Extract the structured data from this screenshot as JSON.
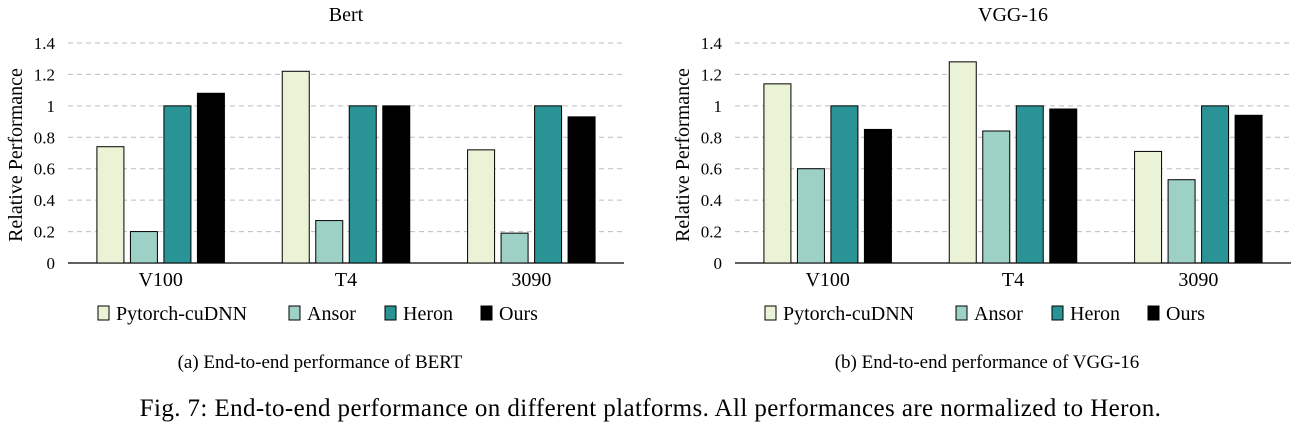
{
  "chart_data": [
    {
      "type": "bar",
      "title": "Bert",
      "ylabel": "Relative Performance",
      "xlabel": "",
      "ylim": [
        0,
        1.4
      ],
      "yticks": [
        "0",
        "0.2",
        "0.4",
        "0.6",
        "0.8",
        "1",
        "1.2",
        "1.4"
      ],
      "grid": true,
      "legend_position": "bottom",
      "categories": [
        "V100",
        "T4",
        "3090"
      ],
      "series": [
        {
          "name": "Pytorch-cuDNN",
          "color": "#ebf3d6",
          "values": [
            0.74,
            1.22,
            0.72
          ]
        },
        {
          "name": "Ansor",
          "color": "#9ed1c6",
          "values": [
            0.2,
            0.27,
            0.19
          ]
        },
        {
          "name": "Heron",
          "color": "#2a9396",
          "values": [
            1.0,
            1.0,
            1.0
          ]
        },
        {
          "name": "Ours",
          "color": "#000000",
          "values": [
            1.08,
            1.0,
            0.93
          ]
        }
      ]
    },
    {
      "type": "bar",
      "title": "VGG-16",
      "ylabel": "Relative Performance",
      "xlabel": "",
      "ylim": [
        0,
        1.4
      ],
      "yticks": [
        "0",
        "0.2",
        "0.4",
        "0.6",
        "0.8",
        "1",
        "1.2",
        "1.4"
      ],
      "grid": true,
      "legend_position": "bottom",
      "categories": [
        "V100",
        "T4",
        "3090"
      ],
      "series": [
        {
          "name": "Pytorch-cuDNN",
          "color": "#ebf3d6",
          "values": [
            1.14,
            1.28,
            0.71
          ]
        },
        {
          "name": "Ansor",
          "color": "#9ed1c6",
          "values": [
            0.6,
            0.84,
            0.53
          ]
        },
        {
          "name": "Heron",
          "color": "#2a9396",
          "values": [
            1.0,
            1.0,
            1.0
          ]
        },
        {
          "name": "Ours",
          "color": "#000000",
          "values": [
            0.85,
            0.98,
            0.94
          ]
        }
      ]
    }
  ],
  "subcaptions": [
    "(a) End-to-end performance of BERT",
    "(b) End-to-end performance of VGG-16"
  ],
  "caption": {
    "label": "Fig. 7:",
    "text": "End-to-end performance on different platforms. All performances are normalized to Heron."
  }
}
